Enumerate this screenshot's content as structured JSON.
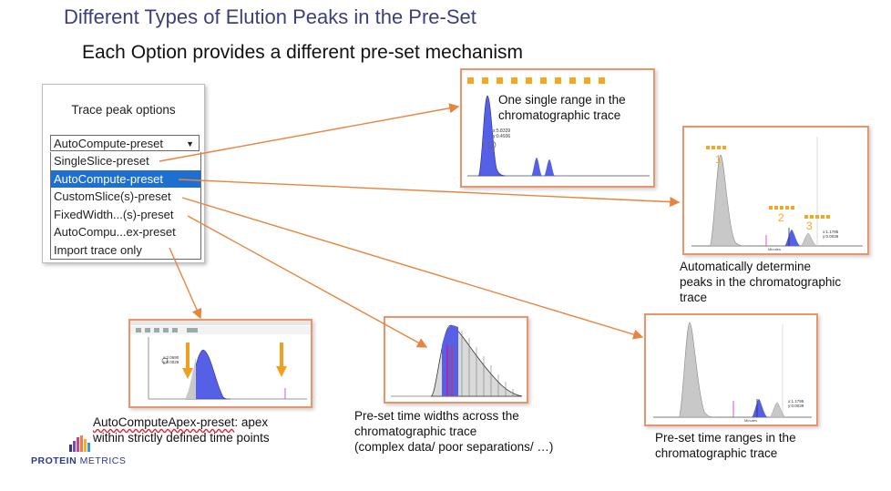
{
  "slide": {
    "title": "Different Types of Elution Peaks in the Pre-Set",
    "subtitle": "Each Option provides a different pre-set mechanism"
  },
  "dropdown": {
    "label": "Trace peak options",
    "selected_value": "AutoCompute-preset",
    "options": [
      "SingleSlice-preset",
      "AutoCompute-preset",
      "CustomSlice(s)-preset",
      "FixedWidth...(s)-preset",
      "AutoCompu...ex-preset",
      "Import trace only"
    ],
    "highlighted_index": 1
  },
  "thumbnails": {
    "single": {
      "caption": [
        "One single range in the",
        "chromatographic trace"
      ],
      "readout": [
        "x:5.8339",
        "y:0.4936"
      ]
    },
    "auto": {
      "caption": [
        "Automatically determine",
        "peaks in the chromatographic",
        "trace"
      ],
      "peak_labels": [
        "1",
        "2",
        "3"
      ],
      "readout": [
        "x:1.1795",
        "y:0.0039"
      ],
      "axis_label": "Minutes"
    },
    "apex": {
      "caption_bold": "AutoComputeApex-preset",
      "caption_rest": ": apex",
      "caption_line2": "within strictly defined time points",
      "readout": [
        "x:2.0690",
        "y:0.0029"
      ]
    },
    "fixed": {
      "caption": [
        "Pre-set time widths across the",
        "chromatographic trace",
        "(complex data/ poor separations/ …)"
      ]
    },
    "custom": {
      "caption": [
        "Pre-set time ranges in the",
        "chromatographic trace"
      ],
      "readout": [
        "x:1.1795",
        "y:0.0039"
      ],
      "axis_label": "Minutes"
    }
  },
  "logo": {
    "bold": "PROTEIN",
    "thin": " METRICS"
  },
  "colors": {
    "title": "#3b3f7a",
    "arrow": "#e8843f",
    "highlight": "#1f6fd1",
    "peak_blue": "#5560e6",
    "peak_gray": "#c8c8c8",
    "marker_orange": "#f5a623"
  }
}
